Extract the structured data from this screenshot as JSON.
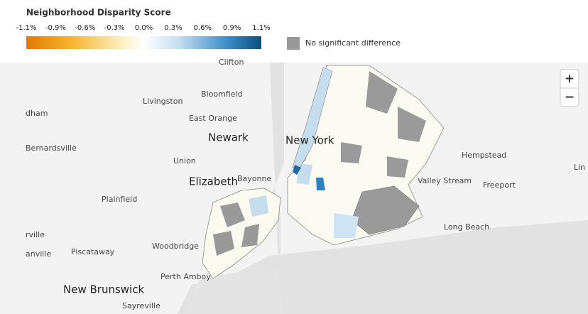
{
  "legend": {
    "title": "Neighborhood Disparity Score",
    "ticks": [
      "-1.1%",
      "-0.9%",
      "-0.6%",
      "-0.3%",
      "0.0%",
      "0.3%",
      "0.6%",
      "0.9%",
      "1.1%"
    ],
    "no_data_label": "No significant difference"
  },
  "map": {
    "places": [
      "Clifton",
      "Livingston",
      "Bloomfield",
      "East Orange",
      "Newark",
      "New York",
      "Bernardsville",
      "Union",
      "Elizabeth",
      "Bayonne",
      "Plainfield",
      "Hempstead",
      "Freeport",
      "Valley Stream",
      "Long Beach",
      "Woodbridge",
      "Piscataway",
      "Perth Amboy",
      "New Brunswick",
      "Sayreville",
      "dham",
      "rville",
      "anville",
      "Lin"
    ]
  },
  "controls": {
    "zoom_in": "+",
    "zoom_out": "−"
  }
}
